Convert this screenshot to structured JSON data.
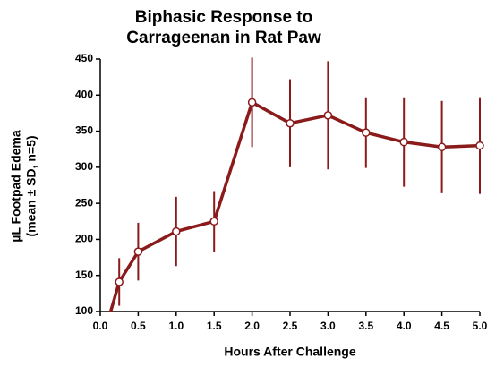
{
  "chart_data": {
    "type": "line",
    "title": [
      "Biphasic Response to",
      "Carrageenan in Rat Paw"
    ],
    "x_label": "Hours After Challenge",
    "y_label": [
      "µL Footpad Edema",
      "(mean ± SD, n=5)"
    ],
    "x": [
      0,
      0.25,
      0.5,
      1.0,
      1.5,
      2.0,
      2.5,
      3.0,
      3.5,
      4.0,
      4.5,
      5.0
    ],
    "series": [
      {
        "color": "#8b1a1a",
        "values": [
          50,
          141,
          183,
          211,
          225,
          390,
          361,
          372,
          348,
          335,
          328,
          330
        ],
        "errors": [
          null,
          33,
          40,
          48,
          42,
          62,
          61,
          75,
          49,
          62,
          64,
          67
        ]
      }
    ],
    "xlim": [
      0,
      5
    ],
    "xticks": [
      {
        "value": 0,
        "label": "0.0"
      },
      0.5,
      {
        "value": 1,
        "label": "1.0"
      },
      1.5,
      {
        "value": 2,
        "label": "2.0"
      },
      2.5,
      {
        "value": 3,
        "label": "3.0"
      },
      3.5,
      {
        "value": 4,
        "label": "4.0"
      },
      4.5,
      {
        "value": 5,
        "label": "5.0"
      }
    ],
    "ylim": [
      100,
      450
    ],
    "yticks": [
      100,
      150,
      200,
      250,
      300,
      350,
      400,
      450
    ]
  }
}
